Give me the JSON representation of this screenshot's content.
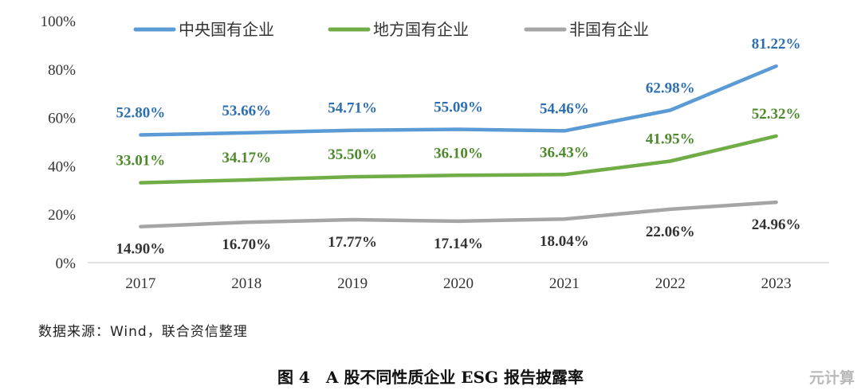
{
  "chart_data": {
    "type": "line",
    "title": "",
    "xlabel": "",
    "ylabel": "",
    "x": [
      "2017",
      "2018",
      "2019",
      "2020",
      "2021",
      "2022",
      "2023"
    ],
    "ylim": [
      0,
      100
    ],
    "yticks": [
      0,
      20,
      40,
      60,
      80,
      100
    ],
    "ytick_labels": [
      "0%",
      "20%",
      "40%",
      "60%",
      "80%",
      "100%"
    ],
    "legend_position": "top",
    "grid": false,
    "series": [
      {
        "name": "中央国有企业",
        "color": "#5b9bd5",
        "label_color": "#2e6fb0",
        "values": [
          52.8,
          53.66,
          54.71,
          55.09,
          54.46,
          62.98,
          81.22
        ],
        "labels": [
          "52.80%",
          "53.66%",
          "54.71%",
          "55.09%",
          "54.46%",
          "62.98%",
          "81.22%"
        ]
      },
      {
        "name": "地方国有企业",
        "color": "#70ad47",
        "label_color": "#4e8a2c",
        "values": [
          33.01,
          34.17,
          35.5,
          36.1,
          36.43,
          41.95,
          52.32
        ],
        "labels": [
          "33.01%",
          "34.17%",
          "35.50%",
          "36.10%",
          "36.43%",
          "41.95%",
          "52.32%"
        ]
      },
      {
        "name": "非国有企业",
        "color": "#a5a5a5",
        "label_color": "#333333",
        "values": [
          14.9,
          16.7,
          17.77,
          17.14,
          18.04,
          22.06,
          24.96
        ],
        "labels": [
          "14.90%",
          "16.70%",
          "17.77%",
          "17.14%",
          "18.04%",
          "22.06%",
          "24.96%"
        ]
      }
    ]
  },
  "source_note": "数据来源：Wind，联合资信整理",
  "figure_caption": "图 4　A 股不同性质企业 ESG 报告披露率",
  "watermark": "元计算"
}
